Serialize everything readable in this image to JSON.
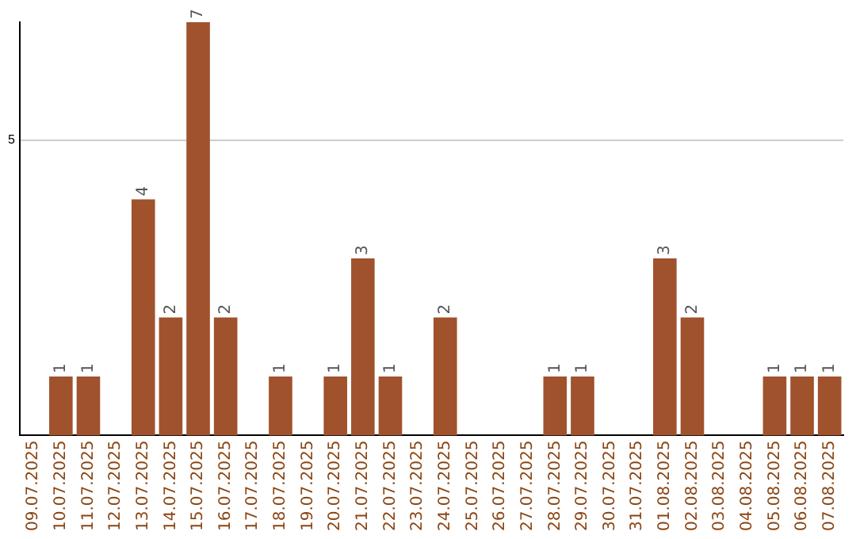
{
  "chart_data": {
    "type": "bar",
    "categories": [
      "09.07.2025",
      "10.07.2025",
      "11.07.2025",
      "12.07.2025",
      "13.07.2025",
      "14.07.2025",
      "15.07.2025",
      "16.07.2025",
      "17.07.2025",
      "18.07.2025",
      "19.07.2025",
      "20.07.2025",
      "21.07.2025",
      "22.07.2025",
      "23.07.2025",
      "24.07.2025",
      "25.07.2025",
      "26.07.2025",
      "27.07.2025",
      "28.07.2025",
      "29.07.2025",
      "30.07.2025",
      "31.07.2025",
      "01.08.2025",
      "02.08.2025",
      "03.08.2025",
      "04.08.2025",
      "05.08.2025",
      "06.08.2025",
      "07.08.2025"
    ],
    "values": [
      0,
      1,
      1,
      0,
      4,
      2,
      7,
      2,
      0,
      1,
      0,
      1,
      3,
      1,
      0,
      2,
      0,
      0,
      0,
      1,
      1,
      0,
      0,
      3,
      2,
      0,
      0,
      1,
      1,
      1
    ],
    "value_labels": [
      null,
      "1",
      "1",
      null,
      "4",
      "2",
      "7",
      "2",
      null,
      "1",
      null,
      "1",
      "3",
      "1",
      null,
      "2",
      null,
      null,
      null,
      "1",
      "1",
      null,
      null,
      "3",
      "2",
      null,
      null,
      "1",
      "1",
      "1"
    ],
    "color": "#a0522d",
    "ylim": [
      0,
      7
    ],
    "yticks": [
      5
    ],
    "grid": "y",
    "legend": false
  }
}
